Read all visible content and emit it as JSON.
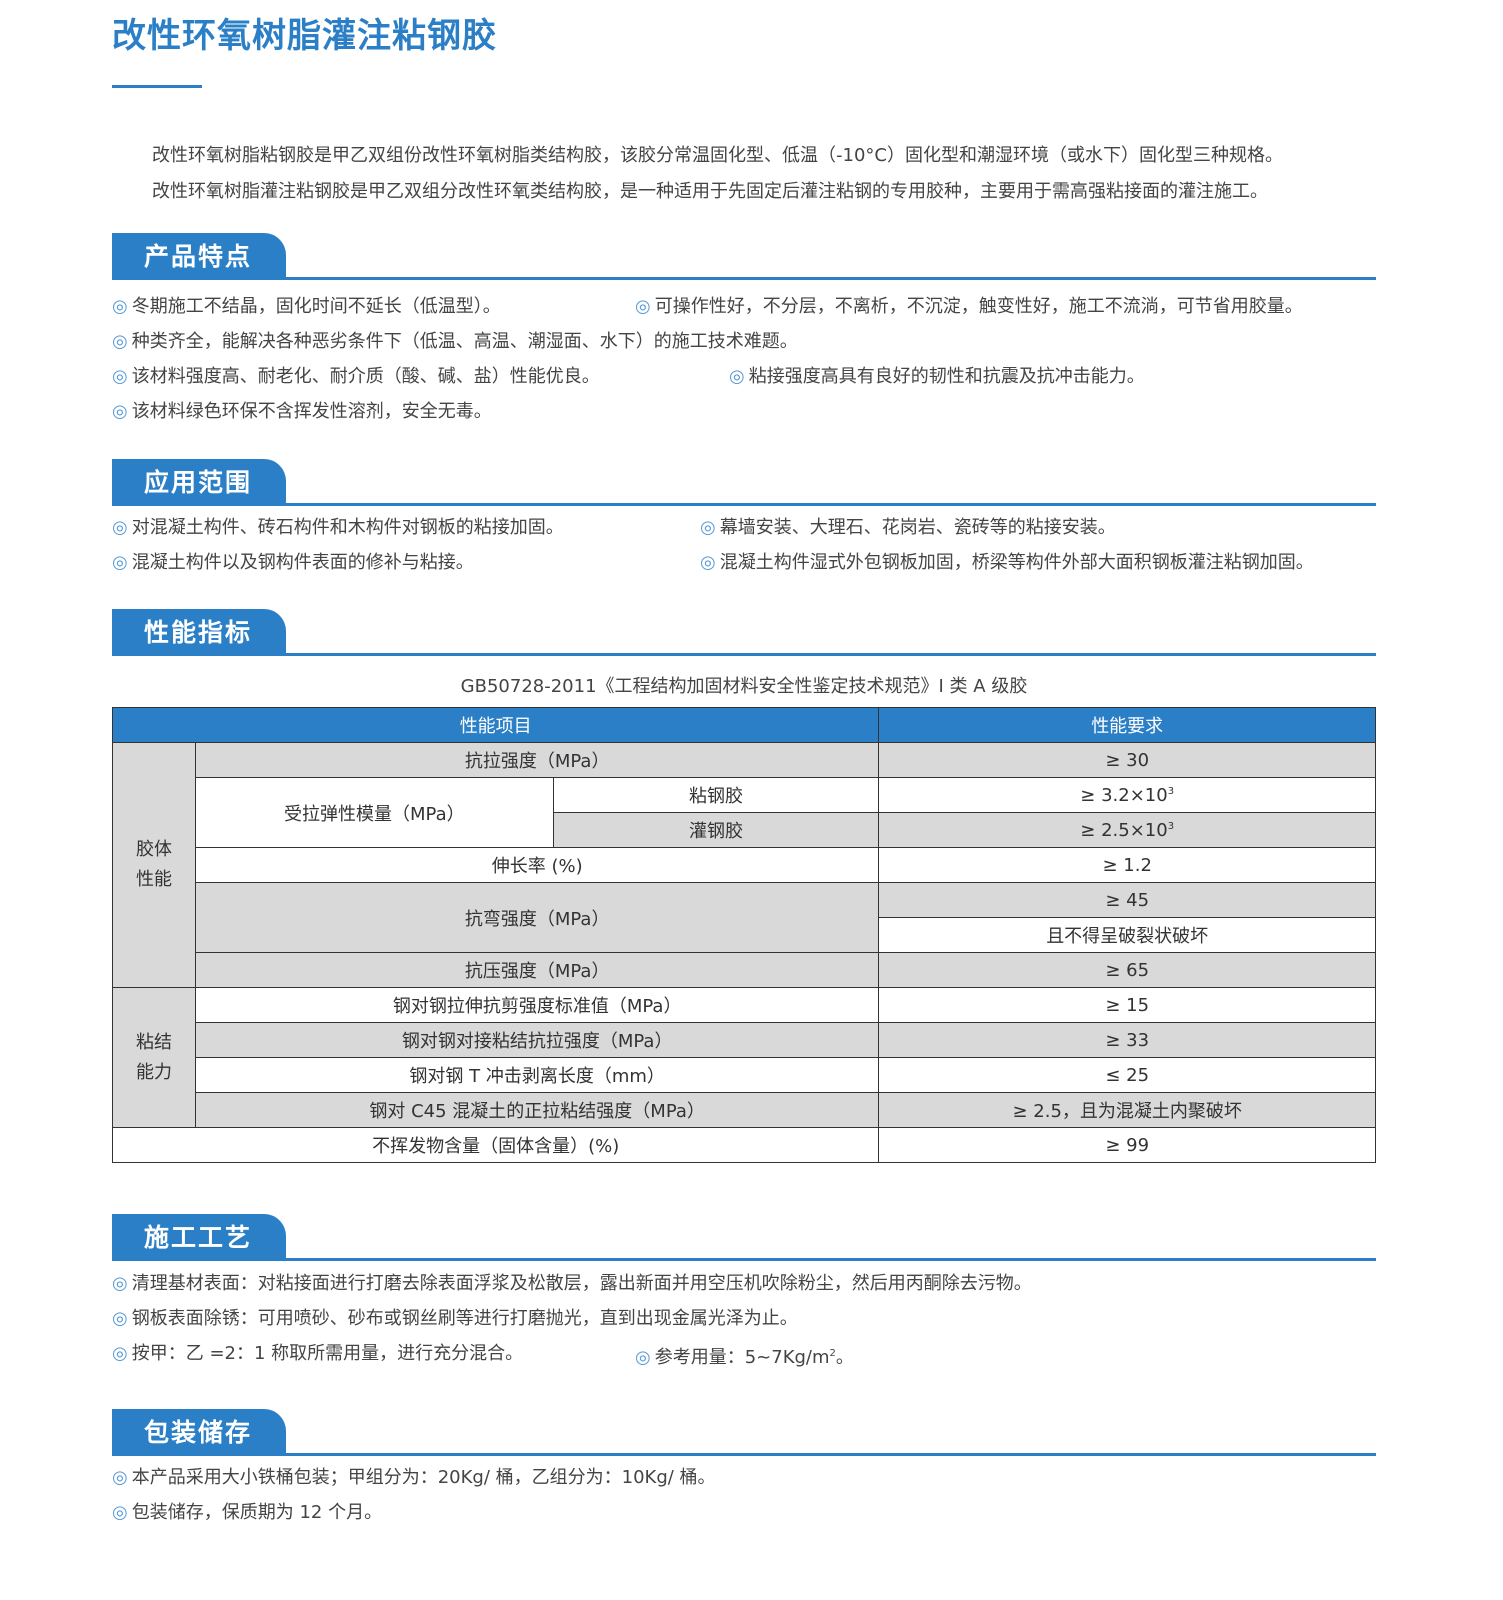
{
  "title": "改性环氧树脂灌注粘钢胶",
  "intro": [
    "改性环氧树脂粘钢胶是甲乙双组份改性环氧树脂类结构胶，该胶分常温固化型、低温（-10°C）固化型和潮湿环境（或水下）固化型三种规格。",
    "改性环氧树脂灌注粘钢胶是甲乙双组分改性环氧类结构胶，是一种适用于先固定后灌注粘钢的专用胶种，主要用于需高强粘接面的灌注施工。"
  ],
  "bullet": "◎",
  "colors": {
    "accent": "#2a7fc6",
    "row_gray": "#d9d9d9"
  },
  "features": {
    "title": "产品特点",
    "items": [
      "冬期施工不结晶，固化时间不延长（低温型）。",
      "可操作性好，不分层，不离析，不沉淀，触变性好，施工不流淌，可节省用胶量。",
      "种类齐全，能解决各种恶劣条件下（低温、高温、潮湿面、水下）的施工技术难题。",
      "该材料强度高、耐老化、耐介质（酸、碱、盐）性能优良。",
      "粘接强度高具有良好的韧性和抗震及抗冲击能力。",
      "该材料绿色环保不含挥发性溶剂，安全无毒。"
    ]
  },
  "scope": {
    "title": "应用范围",
    "items": [
      "对混凝土构件、砖石构件和木构件对钢板的粘接加固。",
      "幕墙安装、大理石、花岗岩、瓷砖等的粘接安装。",
      "混凝土构件以及钢构件表面的修补与粘接。",
      "混凝土构件湿式外包钢板加固，桥梁等构件外部大面积钢板灌注粘钢加固。"
    ]
  },
  "performance": {
    "title": "性能指标",
    "caption": "GB50728-2011《工程结构加固材料安全性鉴定技术规范》I 类 A 级胶",
    "headers": [
      "性能项目",
      "性能要求"
    ],
    "group1": "胶体\n性能",
    "group2": "粘结\n能力",
    "rows": {
      "tensile": "抗拉强度（MPa）",
      "tensile_v": "≥ 30",
      "modulus": "受拉弹性模量（MPa）",
      "stick": "粘钢胶",
      "stick_v": "≥ 3.2×10",
      "pour": "灌钢胶",
      "pour_v": "≥ 2.5×10",
      "exp": "3",
      "elong": "伸长率 (%)",
      "elong_v": "≥ 1.2",
      "bend": "抗弯强度（MPa）",
      "bend_v1": "≥ 45",
      "bend_v2": "且不得呈破裂状破坏",
      "comp": "抗压强度（MPa）",
      "comp_v": "≥ 65",
      "shear": "钢对钢拉伸抗剪强度标准值（MPa）",
      "shear_v": "≥ 15",
      "butt": "钢对钢对接粘结抗拉强度（MPa）",
      "butt_v": "≥ 33",
      "peel": "钢对钢 T 冲击剥离长度（mm）",
      "peel_v": "≤ 25",
      "c45": "钢对 C45 混凝土的正拉粘结强度（MPa）",
      "c45_v": "≥ 2.5，且为混凝土内聚破坏",
      "nonvol": "不挥发物含量（固体含量）(%)",
      "nonvol_v": "≥ 99"
    }
  },
  "process": {
    "title": "施工工艺",
    "items": [
      "清理基材表面：对粘接面进行打磨去除表面浮浆及松散层，露出新面并用空压机吹除粉尘，然后用丙酮除去污物。",
      "钢板表面除锈：可用喷砂、砂布或钢丝刷等进行打磨抛光，直到出现金属光泽为止。",
      "按甲：乙 =2：1 称取所需用量，进行充分混合。",
      "参考用量：5~7Kg/m"
    ],
    "dosage_exp": "2",
    "dosage_end": "。"
  },
  "storage": {
    "title": "包装储存",
    "items": [
      "本产品采用大小铁桶包装；甲组分为：20Kg/ 桶，乙组分为：10Kg/ 桶。",
      "包装储存，保质期为 12 个月。"
    ]
  }
}
